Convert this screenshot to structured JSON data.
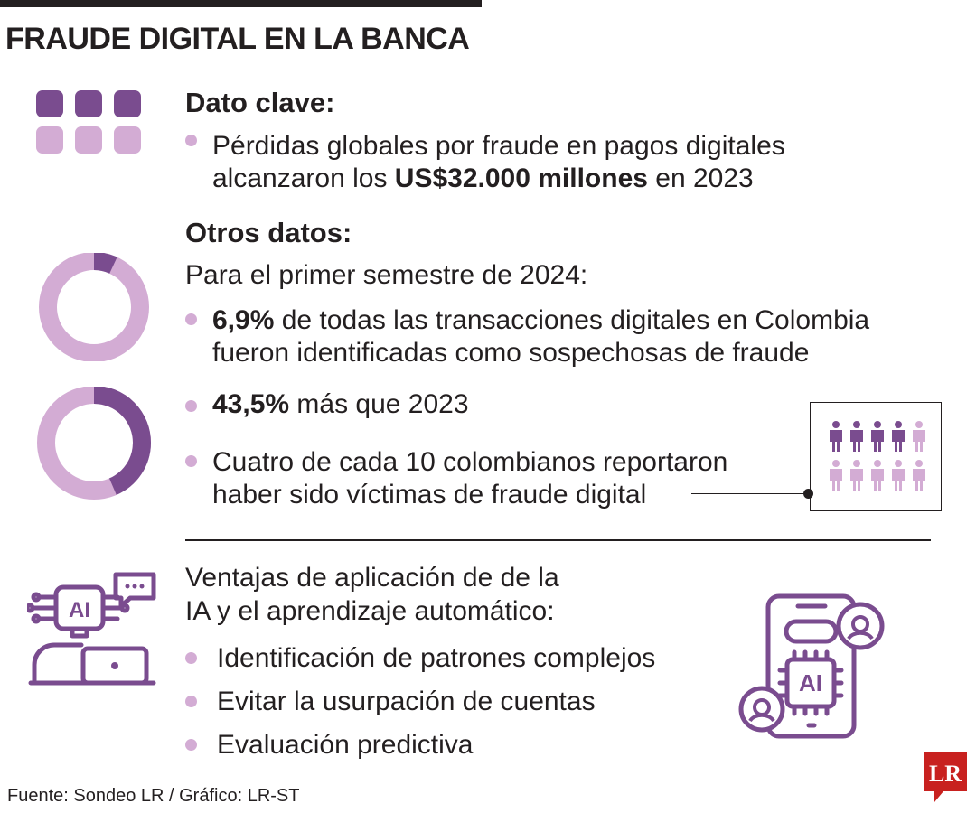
{
  "title": "FRAUDE DIGITAL EN LA BANCA",
  "key_fact": {
    "heading": "Dato clave:",
    "line1": "Pérdidas globales por fraude en pagos digitales",
    "line2_pre": "alcanzaron los ",
    "line2_bold": "US$32.000 millones",
    "line2_post": " en 2023"
  },
  "other": {
    "heading": "Otros datos:",
    "subheading": "Para el primer semestre de 2024:",
    "item1_bold": "6,9%",
    "item1_rest": " de todas las transacciones digitales en Colombia",
    "item1_line2": "fueron identificadas como sospechosas de fraude",
    "item2_bold": "43,5%",
    "item2_rest": " más que 2023",
    "item3_line1": "Cuatro de cada 10 colombianos reportaron",
    "item3_line2": "haber sido víctimas de fraude digital"
  },
  "charts": {
    "donut1_percent": 6.9,
    "donut2_percent": 43.5,
    "people_highlighted": 4,
    "people_total": 10
  },
  "ai": {
    "heading_line1": "Ventajas de aplicación de de la",
    "heading_line2": "IA y el aprendizaje automático:",
    "items": [
      "Identificación de patrones complejos",
      "Evitar la usurpación de cuentas",
      "Evaluación predictiva"
    ],
    "icon_label": "AI"
  },
  "footer": "Fuente: Sondeo LR / Gráfico: LR-ST",
  "logo": "LR",
  "colors": {
    "dark": "#7a4c8f",
    "light": "#d3acd4",
    "text": "#231f20",
    "logo_red": "#c8211f"
  }
}
